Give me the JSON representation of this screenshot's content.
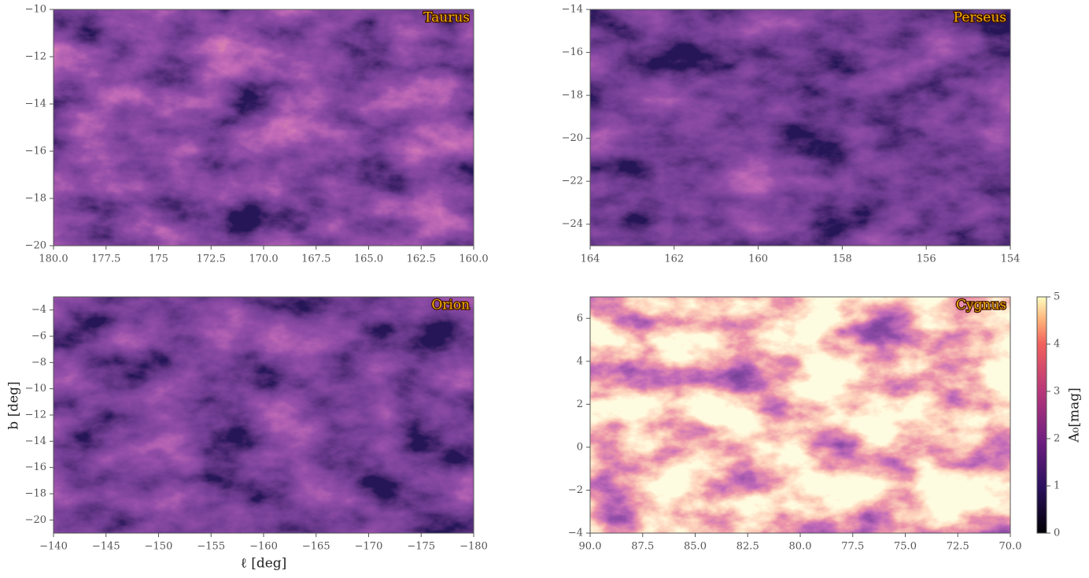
{
  "chart_data": [
    {
      "type": "heatmap",
      "title": "Taurus",
      "xlim": [
        180,
        160
      ],
      "ylim": [
        -20,
        -10
      ],
      "xticks": [
        {
          "value": 180,
          "label": "180.0"
        },
        177.5,
        175,
        {
          "value": 172.5,
          "label": "172.5"
        },
        {
          "value": 170,
          "label": "170.0"
        },
        167.5,
        {
          "value": 165,
          "label": "165.0"
        },
        162.5,
        {
          "value": 160,
          "label": "160.0"
        }
      ],
      "yticks": [
        {
          "value": -10,
          "label": "−10"
        },
        {
          "value": -12,
          "label": "−12"
        },
        {
          "value": -14,
          "label": "−14"
        },
        {
          "value": -16,
          "label": "−16"
        },
        {
          "value": -18,
          "label": "−18"
        },
        {
          "value": -20,
          "label": "−20"
        }
      ]
    },
    {
      "type": "heatmap",
      "title": "Perseus",
      "xlim": [
        164,
        154
      ],
      "ylim": [
        -25,
        -14
      ],
      "xticks": [
        164,
        162,
        160,
        158,
        156,
        154
      ],
      "yticks": [
        {
          "value": -14,
          "label": "−14"
        },
        {
          "value": -16,
          "label": "−16"
        },
        {
          "value": -18,
          "label": "−18"
        },
        {
          "value": -20,
          "label": "−20"
        },
        {
          "value": -22,
          "label": "−22"
        },
        {
          "value": -24,
          "label": "−24"
        }
      ]
    },
    {
      "type": "heatmap",
      "title": "Orion",
      "xlabel": "ℓ [deg]",
      "ylabel": "b [deg]",
      "xlim": [
        -140,
        -180
      ],
      "ylim": [
        -21,
        -3
      ],
      "xticks": [
        {
          "value": -140,
          "label": "−140"
        },
        {
          "value": -145,
          "label": "−145"
        },
        {
          "value": -150,
          "label": "−150"
        },
        {
          "value": -155,
          "label": "−155"
        },
        {
          "value": -160,
          "label": "−160"
        },
        {
          "value": -165,
          "label": "−165"
        },
        {
          "value": -170,
          "label": "−170"
        },
        {
          "value": -175,
          "label": "−175"
        },
        {
          "value": -180,
          "label": "−180"
        }
      ],
      "yticks": [
        {
          "value": -4,
          "label": "−4"
        },
        {
          "value": -6,
          "label": "−6"
        },
        {
          "value": -8,
          "label": "−8"
        },
        {
          "value": -10,
          "label": "−10"
        },
        {
          "value": -12,
          "label": "−12"
        },
        {
          "value": -14,
          "label": "−14"
        },
        {
          "value": -16,
          "label": "−16"
        },
        {
          "value": -18,
          "label": "−18"
        },
        {
          "value": -20,
          "label": "−20"
        }
      ]
    },
    {
      "type": "heatmap",
      "title": "Cygnus",
      "xlim": [
        90,
        70
      ],
      "ylim": [
        -4,
        7
      ],
      "xticks": [
        {
          "value": 90,
          "label": "90.0"
        },
        87.5,
        {
          "value": 85,
          "label": "85.0"
        },
        82.5,
        {
          "value": 80,
          "label": "80.0"
        },
        77.5,
        {
          "value": 75,
          "label": "75.0"
        },
        72.5,
        {
          "value": 70,
          "label": "70.0"
        }
      ],
      "yticks": [
        {
          "value": -4,
          "label": "−4"
        },
        {
          "value": -2,
          "label": "−2"
        },
        0,
        2,
        4,
        6
      ]
    },
    {
      "type": "colorbar",
      "label": "A₀[mag]",
      "colormap": "magma",
      "ylim": [
        0,
        5
      ],
      "yticks": [
        0,
        1,
        2,
        3,
        4,
        5
      ]
    }
  ]
}
